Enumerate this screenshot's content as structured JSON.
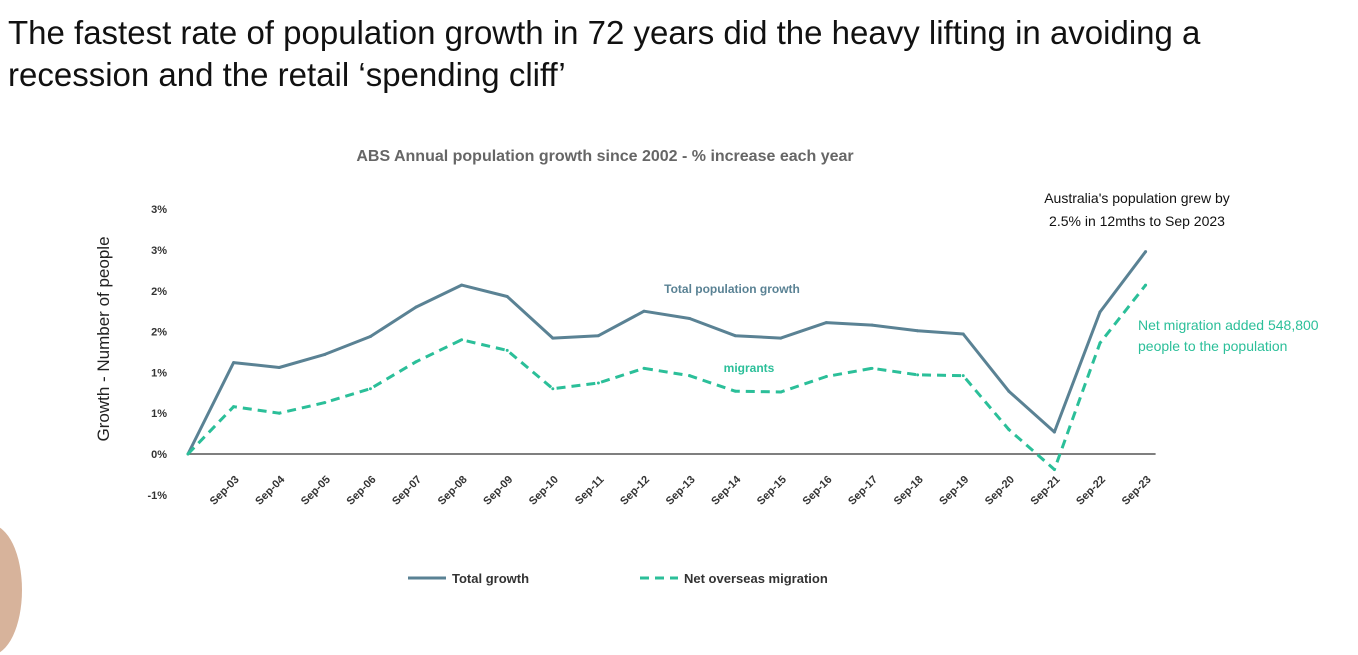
{
  "slide": {
    "title_line1": "The fastest rate of population growth in 72 years did the heavy lifting in avoiding a",
    "title_line2": "recession and the retail ‘spending cliff’"
  },
  "colors": {
    "total": "#5a8294",
    "migration": "#2bbf99",
    "axis": "#555555",
    "text": "#333333"
  },
  "chart_data": {
    "type": "line",
    "title": "ABS Annual population growth since 2002 - % increase each year",
    "xlabel": "",
    "ylabel": "Growth - Number of people",
    "categories": [
      "",
      "Sep-03",
      "Sep-04",
      "Sep-05",
      "Sep-06",
      "Sep-07",
      "Sep-08",
      "Sep-09",
      "Sep-10",
      "Sep-11",
      "Sep-12",
      "Sep-13",
      "Sep-14",
      "Sep-15",
      "Sep-16",
      "Sep-17",
      "Sep-18",
      "Sep-19",
      "Sep-20",
      "Sep-21",
      "Sep-22",
      "Sep-23"
    ],
    "ylim": [
      -0.5,
      3.0
    ],
    "yticks": [
      {
        "value": -0.5,
        "label": "-1%"
      },
      {
        "value": 0.0,
        "label": "0%"
      },
      {
        "value": 0.5,
        "label": "1%"
      },
      {
        "value": 1.0,
        "label": "1%"
      },
      {
        "value": 1.5,
        "label": "2%"
      },
      {
        "value": 2.0,
        "label": "2%"
      },
      {
        "value": 2.5,
        "label": "3%"
      },
      {
        "value": 3.0,
        "label": "3%"
      }
    ],
    "series": [
      {
        "name": "Total growth",
        "style": "solid",
        "values": [
          0.0,
          1.12,
          1.06,
          1.22,
          1.44,
          1.8,
          2.07,
          1.93,
          1.42,
          1.45,
          1.75,
          1.66,
          1.45,
          1.42,
          1.61,
          1.58,
          1.51,
          1.47,
          0.77,
          0.27,
          1.74,
          2.48
        ]
      },
      {
        "name": "Net overseas migration",
        "style": "dashed",
        "values": [
          0.0,
          0.58,
          0.5,
          0.63,
          0.8,
          1.13,
          1.4,
          1.27,
          0.8,
          0.87,
          1.05,
          0.96,
          0.77,
          0.76,
          0.95,
          1.05,
          0.97,
          0.96,
          0.3,
          -0.19,
          1.36,
          2.07
        ]
      }
    ],
    "annotations": [
      {
        "id": "total-label",
        "text": "Total population growth"
      },
      {
        "id": "migrants-label",
        "text": "migrants"
      },
      {
        "id": "pop-note-1",
        "text": "Australia's population grew by"
      },
      {
        "id": "pop-note-2",
        "text": "2.5% in 12mths to Sep 2023"
      },
      {
        "id": "mig-note-1",
        "text": "Net migration added 548,800"
      },
      {
        "id": "mig-note-2",
        "text": "people to the population"
      }
    ],
    "legend_position": "bottom",
    "grid": false
  }
}
